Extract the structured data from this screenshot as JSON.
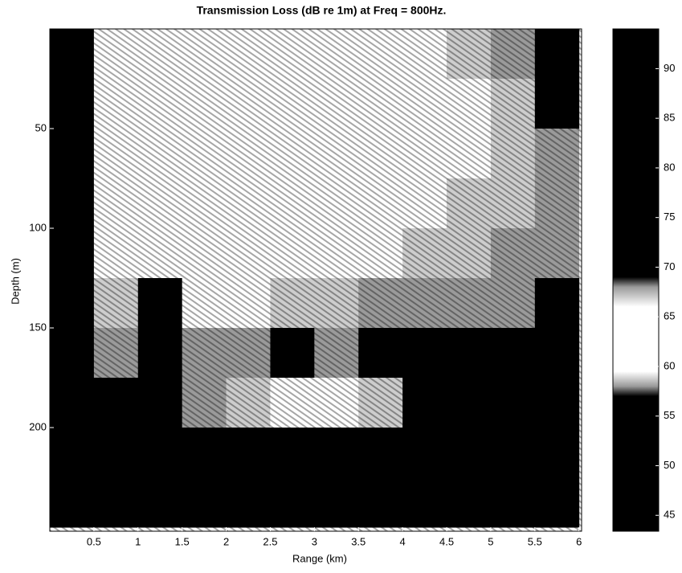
{
  "chart_data": {
    "type": "heatmap",
    "title": "Transmission Loss (dB re 1m) at Freq = 800Hz.",
    "xlabel": "Range (km)",
    "ylabel": "Depth (m)",
    "xlim": [
      0,
      6.03
    ],
    "ylim": [
      0,
      252
    ],
    "y_reversed": true,
    "xticks": [
      0.5,
      1,
      1.5,
      2,
      2.5,
      3,
      3.5,
      4,
      4.5,
      5,
      5.5,
      6
    ],
    "yticks": [
      50,
      100,
      150,
      200
    ],
    "xbins": [
      0,
      0.5,
      1,
      1.5,
      2,
      2.5,
      3,
      3.5,
      4,
      4.5,
      5,
      5.5,
      6
    ],
    "ybins": [
      0,
      25,
      50,
      75,
      100,
      125,
      150,
      175,
      200,
      225,
      250
    ],
    "z": [
      [
        70,
        62,
        63,
        62,
        63,
        64,
        64,
        65,
        66,
        67,
        68,
        70
      ],
      [
        72,
        61,
        62,
        63,
        63,
        64,
        64,
        65,
        66,
        66,
        67,
        69
      ],
      [
        74,
        63,
        62,
        63,
        64,
        64,
        65,
        65,
        66,
        66,
        67,
        68
      ],
      [
        75,
        64,
        63,
        63,
        64,
        65,
        65,
        66,
        66,
        67,
        67,
        68
      ],
      [
        76,
        66,
        64,
        64,
        65,
        65,
        66,
        66,
        67,
        67,
        68,
        68
      ],
      [
        78,
        67,
        69,
        66,
        66,
        67,
        67,
        68,
        68,
        68,
        68,
        69
      ],
      [
        80,
        68,
        70,
        68,
        68,
        69,
        68,
        69,
        70,
        70,
        70,
        71
      ],
      [
        82,
        70,
        69,
        68,
        67,
        66,
        66,
        67,
        69,
        70,
        70,
        71
      ],
      [
        88,
        90,
        90,
        90,
        90,
        90,
        90,
        90,
        90,
        90,
        90,
        90
      ],
      [
        88,
        90,
        90,
        90,
        90,
        90,
        90,
        90,
        90,
        90,
        90,
        90
      ]
    ],
    "colorbar_lim": [
      43.4,
      94
    ],
    "colorbar_ticks": [
      45,
      50,
      55,
      60,
      65,
      70,
      75,
      80,
      85,
      90
    ],
    "colormap": [
      [
        43.4,
        "#000000"
      ],
      [
        57,
        "#000000"
      ],
      [
        58,
        "#9a9a9a"
      ],
      [
        59.5,
        "#ffffff"
      ],
      [
        66,
        "#ffffff"
      ],
      [
        68,
        "#9a9a9a"
      ],
      [
        69,
        "#000000"
      ],
      [
        94,
        "#000000"
      ]
    ]
  }
}
